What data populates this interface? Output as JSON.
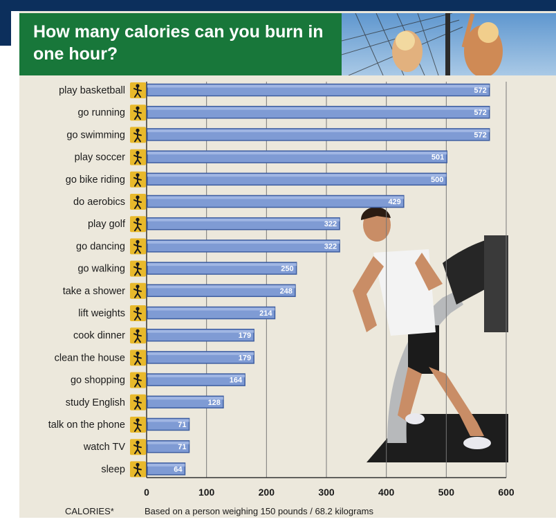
{
  "header": {
    "title": "How many calories can you burn in one hour?"
  },
  "footer": {
    "axis_title": "CALORIES*",
    "note": "Based on a person weighing 150 pounds / 68.2 kilograms"
  },
  "colors": {
    "title_bg": "#18773a",
    "panel_bg": "#ece8dc",
    "bar_fill": "#7f9bd4",
    "bar_edge": "#3d5da0",
    "icon_bg": "#e8b92b",
    "frame": "#0c2f5c"
  },
  "chart_data": {
    "type": "bar",
    "orientation": "horizontal",
    "title": "How many calories can you burn in one hour?",
    "xlabel": "CALORIES*",
    "xlim": [
      0,
      600
    ],
    "xticks": [
      0,
      100,
      200,
      300,
      400,
      500,
      600
    ],
    "grid": true,
    "categories": [
      "play basketball",
      "go running",
      "go swimming",
      "play soccer",
      "go bike riding",
      "do aerobics",
      "play golf",
      "go dancing",
      "go walking",
      "take a shower",
      "lift weights",
      "cook dinner",
      "clean the house",
      "go shopping",
      "study English",
      "talk on the phone",
      "watch TV",
      "sleep"
    ],
    "values": [
      572,
      572,
      572,
      501,
      500,
      429,
      322,
      322,
      250,
      248,
      214,
      179,
      179,
      164,
      128,
      71,
      71,
      64
    ],
    "icons": [
      "basketball-icon",
      "running-icon",
      "swimming-icon",
      "soccer-icon",
      "bike-icon",
      "aerobics-icon",
      "golf-icon",
      "dancing-icon",
      "walking-icon",
      "shower-icon",
      "weights-icon",
      "cooking-icon",
      "cleaning-icon",
      "shopping-icon",
      "studying-icon",
      "phone-icon",
      "tv-icon",
      "sleep-icon"
    ]
  }
}
